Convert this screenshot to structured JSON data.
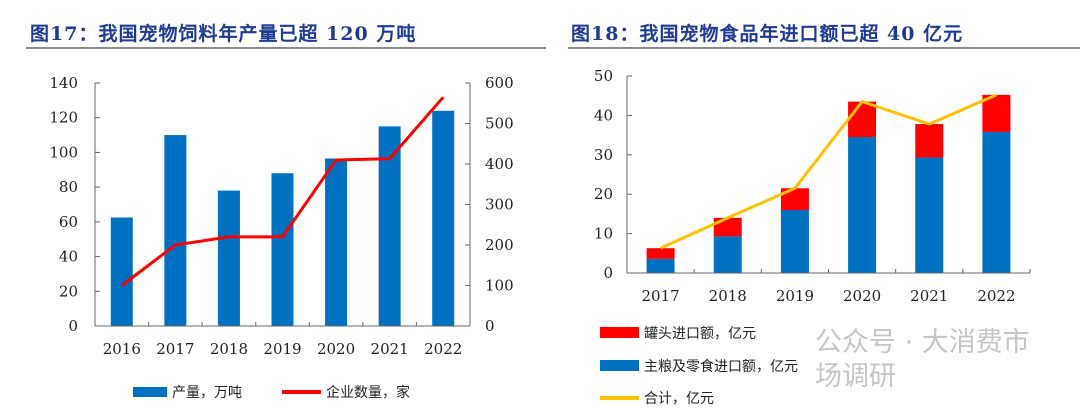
{
  "chart_data": [
    {
      "type": "bar+line",
      "title": "图17：我国宠物饲料年产量已超 120 万吨",
      "categories": [
        "2016",
        "2017",
        "2018",
        "2019",
        "2020",
        "2021",
        "2022"
      ],
      "series": [
        {
          "name": "产量，万吨",
          "type": "bar",
          "axis": "left",
          "color": "#0070c0",
          "values": [
            62.5,
            110,
            78,
            88,
            96.5,
            115,
            124
          ]
        },
        {
          "name": "企业数量，家",
          "type": "line",
          "axis": "right",
          "color": "#ff0000",
          "values": [
            100,
            200,
            220,
            220,
            410,
            413,
            565
          ]
        }
      ],
      "ylim_left": [
        0,
        140
      ],
      "yticks_left": [
        "0",
        "20",
        "40",
        "60",
        "80",
        "100",
        "120",
        "140"
      ],
      "ylim_right": [
        0,
        600
      ],
      "yticks_right": [
        "0",
        "100",
        "200",
        "300",
        "400",
        "500",
        "600"
      ],
      "legend": "bottom",
      "grid": false
    },
    {
      "type": "stacked-bar+line",
      "title": "图18：我国宠物食品年进口额已超 40 亿元",
      "categories": [
        "2017",
        "2018",
        "2019",
        "2020",
        "2021",
        "2022"
      ],
      "series": [
        {
          "name": "罐头进口额，亿元",
          "type": "bar",
          "color": "#ff0000",
          "values": [
            2.7,
            4.7,
            5.5,
            9.0,
            8.5,
            9.4
          ]
        },
        {
          "name": "主粮及零食进口额，亿元",
          "type": "bar",
          "color": "#0070c0",
          "values": [
            3.6,
            9.3,
            16.0,
            34.5,
            29.3,
            35.8
          ]
        },
        {
          "name": "合计，亿元",
          "type": "line",
          "color": "#ffc000",
          "values": [
            6.3,
            14.0,
            21.5,
            43.5,
            37.8,
            45.2
          ]
        }
      ],
      "ylim": [
        0,
        50
      ],
      "yticks": [
        "0",
        "10",
        "20",
        "30",
        "40",
        "50"
      ],
      "legend": "bottom",
      "grid": false
    }
  ],
  "watermark": "公众号 · 大消费市场调研"
}
